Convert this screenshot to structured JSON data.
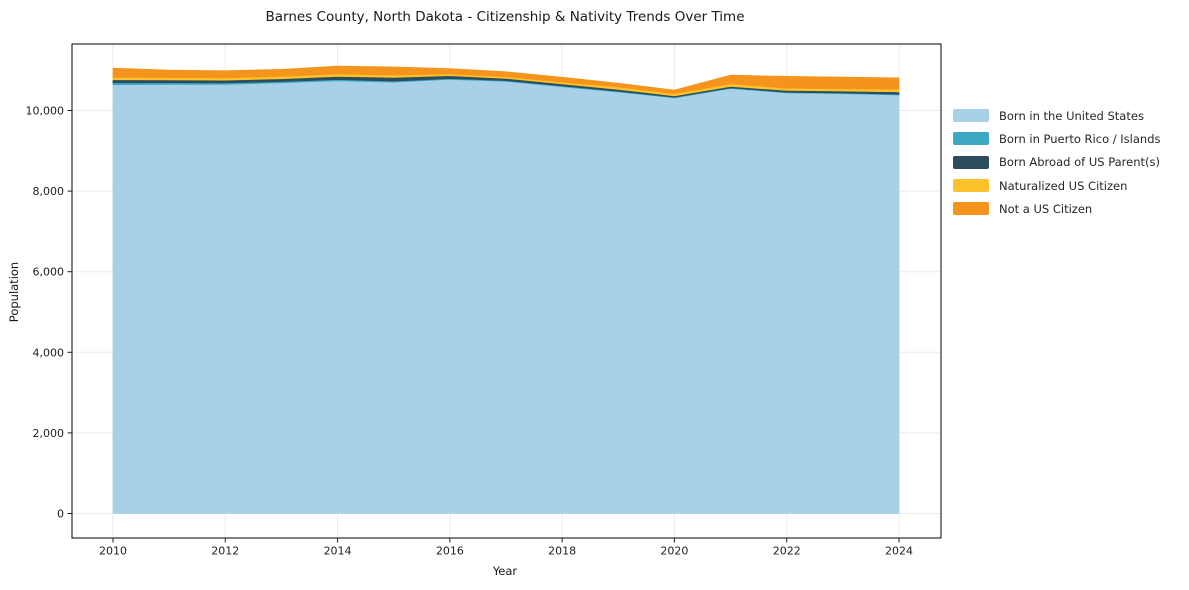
{
  "chart_data": {
    "type": "area",
    "stacked": true,
    "title": "Barnes County, North Dakota - Citizenship & Nativity Trends Over Time",
    "xlabel": "Year",
    "ylabel": "Population",
    "x": [
      2010,
      2011,
      2012,
      2013,
      2014,
      2015,
      2016,
      2017,
      2018,
      2019,
      2020,
      2021,
      2022,
      2023,
      2024
    ],
    "x_ticks": [
      2010,
      2012,
      2014,
      2016,
      2018,
      2020,
      2022,
      2024
    ],
    "y_ticks": [
      0,
      2000,
      4000,
      6000,
      8000,
      10000
    ],
    "y_tick_labels": [
      "0",
      "2,000",
      "4,000",
      "6,000",
      "8,000",
      "10,000"
    ],
    "xlim": [
      2009.27,
      2024.73
    ],
    "ylim": [
      -580,
      11660
    ],
    "grid": true,
    "legend_position": "right",
    "series": [
      {
        "name": "Born in the United States",
        "color": "#a8d1e7",
        "values": [
          10640,
          10650,
          10650,
          10690,
          10740,
          10705,
          10775,
          10725,
          10590,
          10460,
          10315,
          10545,
          10440,
          10420,
          10385
        ]
      },
      {
        "name": "Born in Puerto Rico / Islands",
        "color": "#3da8c4",
        "values": [
          50,
          40,
          35,
          30,
          30,
          25,
          20,
          20,
          20,
          20,
          15,
          15,
          15,
          15,
          20
        ]
      },
      {
        "name": "Born Abroad of US Parent(s)",
        "color": "#2b4d5e",
        "values": [
          75,
          70,
          70,
          70,
          75,
          95,
          70,
          55,
          50,
          45,
          35,
          40,
          45,
          50,
          60
        ]
      },
      {
        "name": "Naturalized US Citizen",
        "color": "#fcc22b",
        "values": [
          60,
          60,
          55,
          60,
          65,
          55,
          45,
          40,
          45,
          60,
          55,
          65,
          55,
          55,
          65
        ]
      },
      {
        "name": "Not a US Citizen",
        "color": "#f5941d",
        "values": [
          225,
          180,
          175,
          170,
          190,
          200,
          130,
          120,
          120,
          90,
          85,
          210,
          290,
          290,
          280
        ]
      }
    ],
    "totals": [
      11050,
      11000,
      10985,
      11020,
      11100,
      11080,
      11040,
      10960,
      10825,
      10675,
      10505,
      10875,
      10845,
      10830,
      10810
    ]
  },
  "colors": {
    "grid": "#ebebeb",
    "spine": "#000000",
    "tick_text": "#1f1f1f"
  }
}
